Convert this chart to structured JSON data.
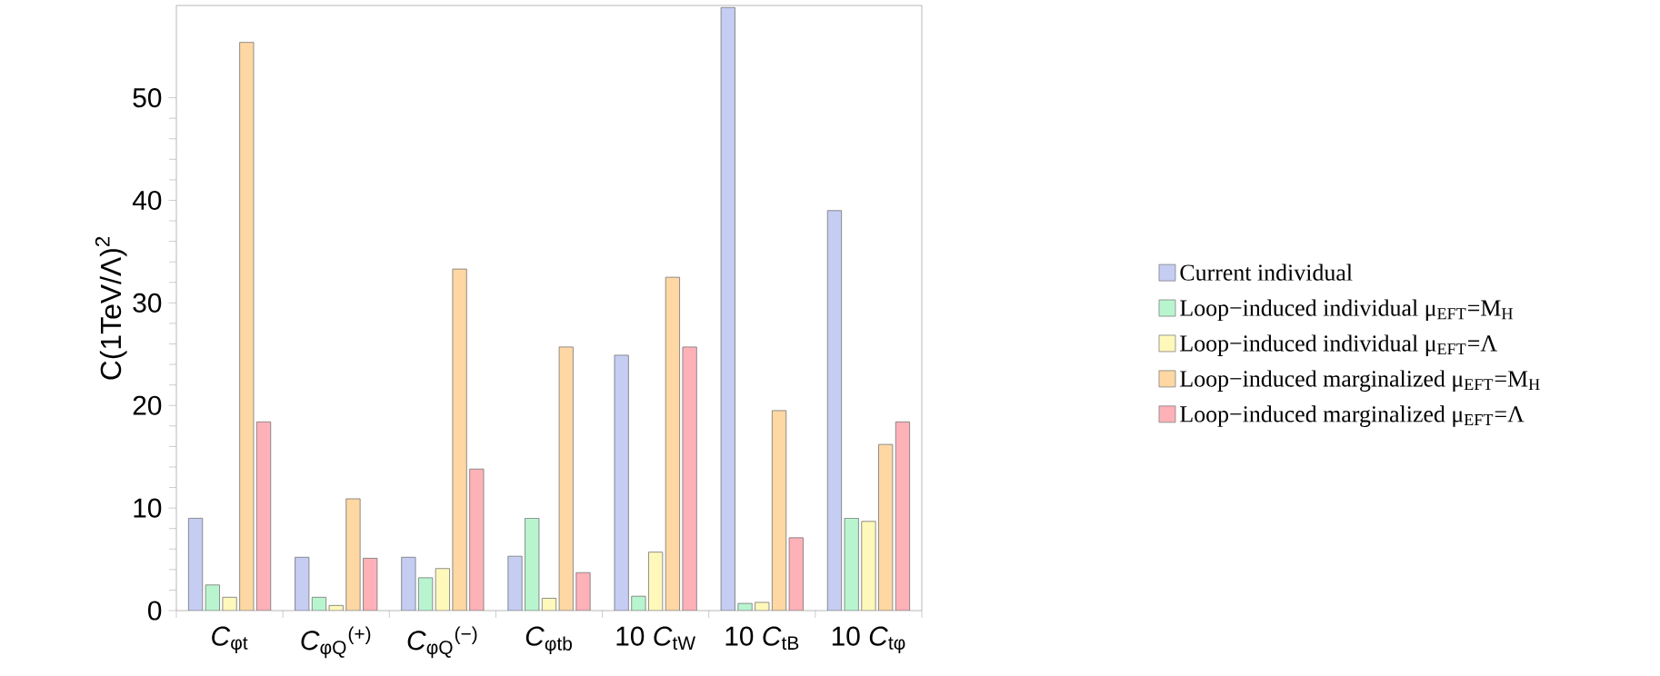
{
  "chart_data": {
    "type": "bar",
    "ylabel": "C(1TeV/Λ)$^{2}$",
    "categories": [
      "*C*$_{φt}$",
      "*C*$_{φQ}$$^{(+)}$",
      "*C*$_{φQ}$$^{(−)}$",
      "*C*$_{φtb}$",
      "10 *C*$_{tW}$",
      "10 *C*$_{tB}$",
      "10 *C*$_{tφ}$"
    ],
    "series": [
      {
        "name": "Current individual",
        "color": "#c5cdf3",
        "values": [
          9.0,
          5.2,
          5.2,
          5.3,
          24.9,
          58.8,
          39.0
        ]
      },
      {
        "name": "Loop−induced individual μ$_{EFT}$=M$_{H}$",
        "color": "#b8f5cf",
        "values": [
          2.5,
          1.3,
          3.2,
          9.0,
          1.4,
          0.7,
          9.0
        ]
      },
      {
        "name": "Loop−induced individual μ$_{EFT}$=Λ",
        "color": "#fff8bb",
        "values": [
          1.3,
          0.5,
          4.1,
          1.2,
          5.7,
          0.8,
          8.7
        ]
      },
      {
        "name": "Loop−induced marginalized μ$_{EFT}$=M$_{H}$",
        "color": "#fed7a3",
        "values": [
          55.4,
          10.9,
          33.3,
          25.7,
          32.5,
          19.5,
          16.2
        ]
      },
      {
        "name": "Loop−induced marginalized μ$_{EFT}$=Λ",
        "color": "#ffb1b8",
        "values": [
          18.4,
          5.1,
          13.8,
          3.7,
          25.7,
          7.1,
          18.4
        ]
      }
    ],
    "ylim": [
      0,
      59
    ],
    "yticks": [
      0,
      10,
      20,
      30,
      40,
      50
    ],
    "grid": false,
    "legend": "right"
  }
}
